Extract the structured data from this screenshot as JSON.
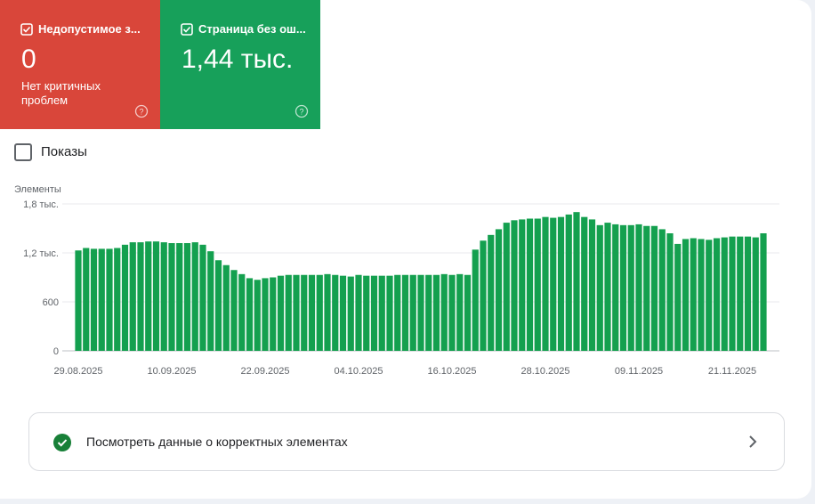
{
  "cards": [
    {
      "label": "Недопустимое з...",
      "value": "0",
      "note": "Нет критичных проблем"
    },
    {
      "label": "Страница без ош...",
      "value": "1,44 тыс."
    }
  ],
  "impressions_toggle": "Показы",
  "chart_data": {
    "type": "bar",
    "y_label": "Элементы",
    "color": "#14a04f",
    "grid": true,
    "ylim": [
      0,
      1800
    ],
    "yticks": [
      0,
      600,
      {
        "value": 1200,
        "label": "1,2 тыс."
      },
      {
        "value": 1800,
        "label": "1,8 тыс."
      }
    ],
    "categories": [
      "29.08.2025",
      null,
      null,
      null,
      null,
      null,
      null,
      null,
      null,
      null,
      null,
      null,
      "10.09.2025",
      null,
      null,
      null,
      null,
      null,
      null,
      null,
      null,
      null,
      null,
      null,
      "22.09.2025",
      null,
      null,
      null,
      null,
      null,
      null,
      null,
      null,
      null,
      null,
      null,
      "04.10.2025",
      null,
      null,
      null,
      null,
      null,
      null,
      null,
      null,
      null,
      null,
      null,
      "16.10.2025",
      null,
      null,
      null,
      null,
      null,
      null,
      null,
      null,
      null,
      null,
      null,
      "28.10.2025",
      null,
      null,
      null,
      null,
      null,
      null,
      null,
      null,
      null,
      null,
      null,
      "09.11.2025",
      null,
      null,
      null,
      null,
      null,
      null,
      null,
      null,
      null,
      null,
      null,
      "21.11.2025",
      null,
      null,
      null,
      null
    ],
    "values": [
      1230,
      1260,
      1250,
      1250,
      1250,
      1260,
      1300,
      1330,
      1330,
      1340,
      1340,
      1330,
      1320,
      1320,
      1320,
      1330,
      1300,
      1220,
      1110,
      1050,
      990,
      940,
      890,
      870,
      890,
      900,
      920,
      930,
      930,
      930,
      930,
      930,
      940,
      930,
      920,
      910,
      930,
      920,
      920,
      920,
      920,
      930,
      930,
      930,
      930,
      930,
      930,
      940,
      930,
      940,
      930,
      1240,
      1350,
      1420,
      1490,
      1570,
      1600,
      1610,
      1620,
      1620,
      1640,
      1630,
      1640,
      1670,
      1700,
      1640,
      1610,
      1540,
      1570,
      1550,
      1540,
      1540,
      1550,
      1530,
      1530,
      1490,
      1440,
      1310,
      1370,
      1380,
      1370,
      1360,
      1380,
      1390,
      1400,
      1400,
      1400,
      1390,
      1440
    ]
  },
  "link": "Посмотреть данные о корректных элементах"
}
